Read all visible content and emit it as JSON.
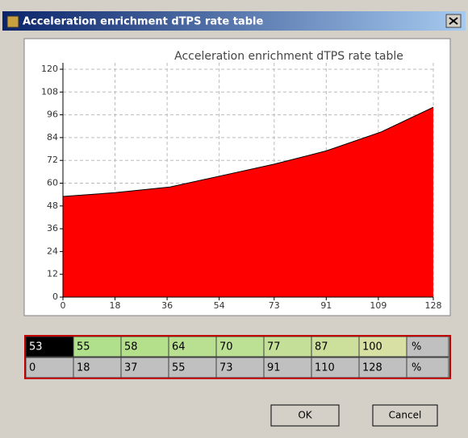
{
  "window": {
    "title": "Acceleration enrichment dTPS rate table"
  },
  "chart_data": {
    "type": "area",
    "title": "Acceleration enrichment dTPS rate table",
    "x": [
      0,
      18,
      37,
      55,
      73,
      91,
      110,
      128
    ],
    "values": [
      53,
      55,
      58,
      64,
      70,
      77,
      87,
      100
    ],
    "color": "#ff0000",
    "line_color": "#000000",
    "xlim": [
      0,
      128
    ],
    "ylim": [
      0,
      120
    ],
    "xticks": [
      0,
      18,
      36,
      54,
      73,
      91,
      109,
      128
    ],
    "yticks": [
      0,
      12,
      24,
      36,
      48,
      60,
      72,
      84,
      96,
      108,
      120
    ],
    "grid": true
  },
  "table": {
    "units": [
      "%",
      "%"
    ]
  },
  "buttons": [
    "OK",
    "Cancel"
  ]
}
